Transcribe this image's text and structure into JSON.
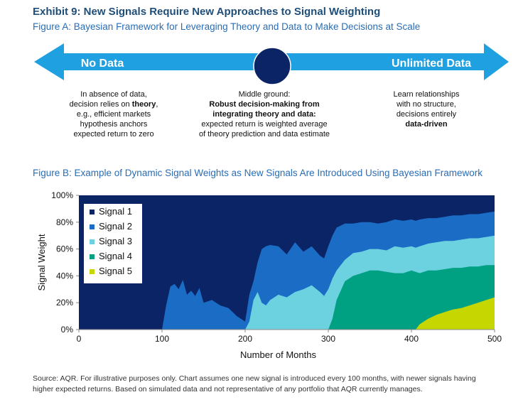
{
  "exhibit_title": "Exhibit 9: New Signals Require New Approaches to Signal Weighting",
  "figure_a": {
    "title": "Figure A: Bayesian Framework for Leveraging Theory and Data to Make Decisions at Scale",
    "left_label": "No Data",
    "right_label": "Unlimited Data",
    "left_caption": {
      "line1": "In absence of data,",
      "line2_pre": "decision relies on ",
      "line2_bold": "theory",
      "line2_post": ",",
      "line3": "e.g., efficient markets",
      "line4": "hypothesis anchors",
      "line5": "expected return to zero"
    },
    "middle_caption": {
      "line1": "Middle ground:",
      "line2_bold": "Robust decision-making from",
      "line3_bold": "integrating theory and data:",
      "line4": "expected return is weighted average",
      "line5": "of theory prediction and data estimate"
    },
    "right_caption": {
      "line1": "Learn relationships",
      "line2": "with no structure,",
      "line3": "decisions entirely",
      "line4_bold": "data-driven"
    },
    "colors": {
      "arrow": "#1fa0e0",
      "circle": "#0b2466"
    }
  },
  "figure_b": {
    "title": "Figure B: Example of Dynamic Signal Weights as New Signals Are Introduced Using Bayesian Framework"
  },
  "chart_data": {
    "type": "area",
    "stacked": true,
    "xlabel": "Number of Months",
    "ylabel": "Signal Weight",
    "xlim": [
      0,
      500
    ],
    "ylim": [
      0,
      100
    ],
    "x_ticks": [
      0,
      100,
      200,
      300,
      400,
      500
    ],
    "y_ticks": [
      "0%",
      "20%",
      "40%",
      "60%",
      "80%",
      "100%"
    ],
    "legend_position": "top-left",
    "note": "Cumulative boundaries (top of each signal band) in % at given months; Signal 1 fills the remainder to 100%.",
    "x": [
      0,
      100,
      105,
      110,
      115,
      120,
      125,
      130,
      135,
      140,
      145,
      150,
      160,
      170,
      180,
      190,
      200,
      205,
      210,
      215,
      220,
      225,
      230,
      240,
      250,
      260,
      270,
      280,
      290,
      295,
      300,
      305,
      310,
      320,
      330,
      340,
      350,
      360,
      370,
      380,
      390,
      400,
      405,
      410,
      420,
      430,
      440,
      450,
      460,
      470,
      480,
      490,
      500
    ],
    "series": [
      {
        "name": "Signal 5",
        "color": "#c5d600",
        "cum": [
          0,
          0,
          0,
          0,
          0,
          0,
          0,
          0,
          0,
          0,
          0,
          0,
          0,
          0,
          0,
          0,
          0,
          0,
          0,
          0,
          0,
          0,
          0,
          0,
          0,
          0,
          0,
          0,
          0,
          0,
          0,
          0,
          0,
          0,
          0,
          0,
          0,
          0,
          0,
          0,
          0,
          0,
          0,
          4,
          8,
          11,
          13,
          15,
          16,
          18,
          20,
          22,
          24
        ]
      },
      {
        "name": "Signal 4",
        "color": "#00a083",
        "cum": [
          0,
          0,
          0,
          0,
          0,
          0,
          0,
          0,
          0,
          0,
          0,
          0,
          0,
          0,
          0,
          0,
          0,
          0,
          0,
          0,
          0,
          0,
          0,
          0,
          0,
          0,
          0,
          0,
          0,
          0,
          0,
          8,
          22,
          36,
          40,
          42,
          44,
          44,
          43,
          42,
          42,
          44,
          43,
          42,
          44,
          44,
          45,
          46,
          46,
          47,
          47,
          48,
          48
        ]
      },
      {
        "name": "Signal 3",
        "color": "#6dd2e0",
        "cum": [
          0,
          0,
          0,
          0,
          0,
          0,
          0,
          0,
          0,
          0,
          0,
          0,
          0,
          0,
          0,
          0,
          0,
          6,
          22,
          28,
          20,
          18,
          22,
          26,
          24,
          28,
          30,
          33,
          28,
          25,
          30,
          38,
          44,
          52,
          57,
          58,
          60,
          60,
          59,
          62,
          61,
          62,
          61,
          62,
          64,
          65,
          66,
          66,
          67,
          68,
          68,
          69,
          70
        ]
      },
      {
        "name": "Signal 2",
        "color": "#1a6cc4",
        "cum": [
          0,
          0,
          18,
          32,
          34,
          30,
          37,
          26,
          29,
          25,
          31,
          20,
          22,
          18,
          16,
          10,
          6,
          26,
          36,
          50,
          60,
          62,
          63,
          62,
          56,
          65,
          58,
          62,
          55,
          53,
          62,
          70,
          76,
          79,
          79,
          80,
          80,
          79,
          80,
          82,
          81,
          82,
          81,
          82,
          83,
          83,
          84,
          85,
          85,
          86,
          86,
          87,
          88
        ]
      }
    ],
    "remainder_series": {
      "name": "Signal 1",
      "color": "#0b2466"
    },
    "legend_order": [
      "Signal 1",
      "Signal 2",
      "Signal 3",
      "Signal 4",
      "Signal 5"
    ]
  },
  "source_note": {
    "line1": "Source: AQR. For illustrative purposes only. Chart assumes one new signal is introduced every 100 months, with newer signals having",
    "line2": "higher expected returns. Based on simulated data and not representative of any portfolio that AQR currently manages."
  }
}
